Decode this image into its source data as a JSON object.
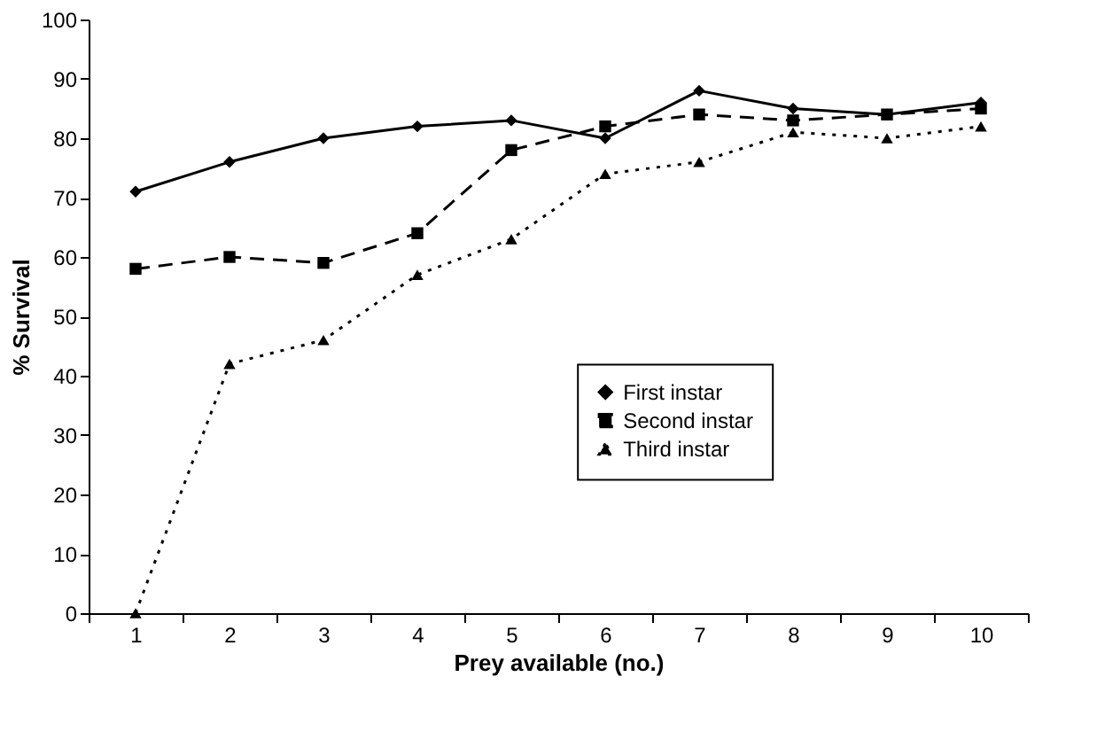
{
  "chart_data": {
    "type": "line",
    "xlabel": "Prey available (no.)",
    "ylabel": "% Survival",
    "categories": [
      "1",
      "2",
      "3",
      "4",
      "5",
      "6",
      "7",
      "8",
      "9",
      "10"
    ],
    "ylim": [
      0,
      100
    ],
    "yticks": [
      0,
      10,
      20,
      30,
      40,
      50,
      60,
      70,
      80,
      90,
      100
    ],
    "grid": false,
    "legend": "bottom right",
    "series": [
      {
        "name": "First instar",
        "color": "#000000",
        "marker": "diamond",
        "line_style": "solid",
        "values": [
          71,
          76,
          80,
          82,
          83,
          80,
          88,
          85,
          84,
          86
        ]
      },
      {
        "name": "Second instar",
        "color": "#000000",
        "marker": "square",
        "line_style": "dashed",
        "values": [
          58,
          60,
          59,
          64,
          78,
          82,
          84,
          83,
          84,
          85
        ]
      },
      {
        "name": "Third instar",
        "color": "#000000",
        "marker": "triangle",
        "line_style": "dotted",
        "values": [
          0,
          42,
          46,
          57,
          63,
          74,
          76,
          81,
          80,
          82
        ]
      }
    ]
  }
}
